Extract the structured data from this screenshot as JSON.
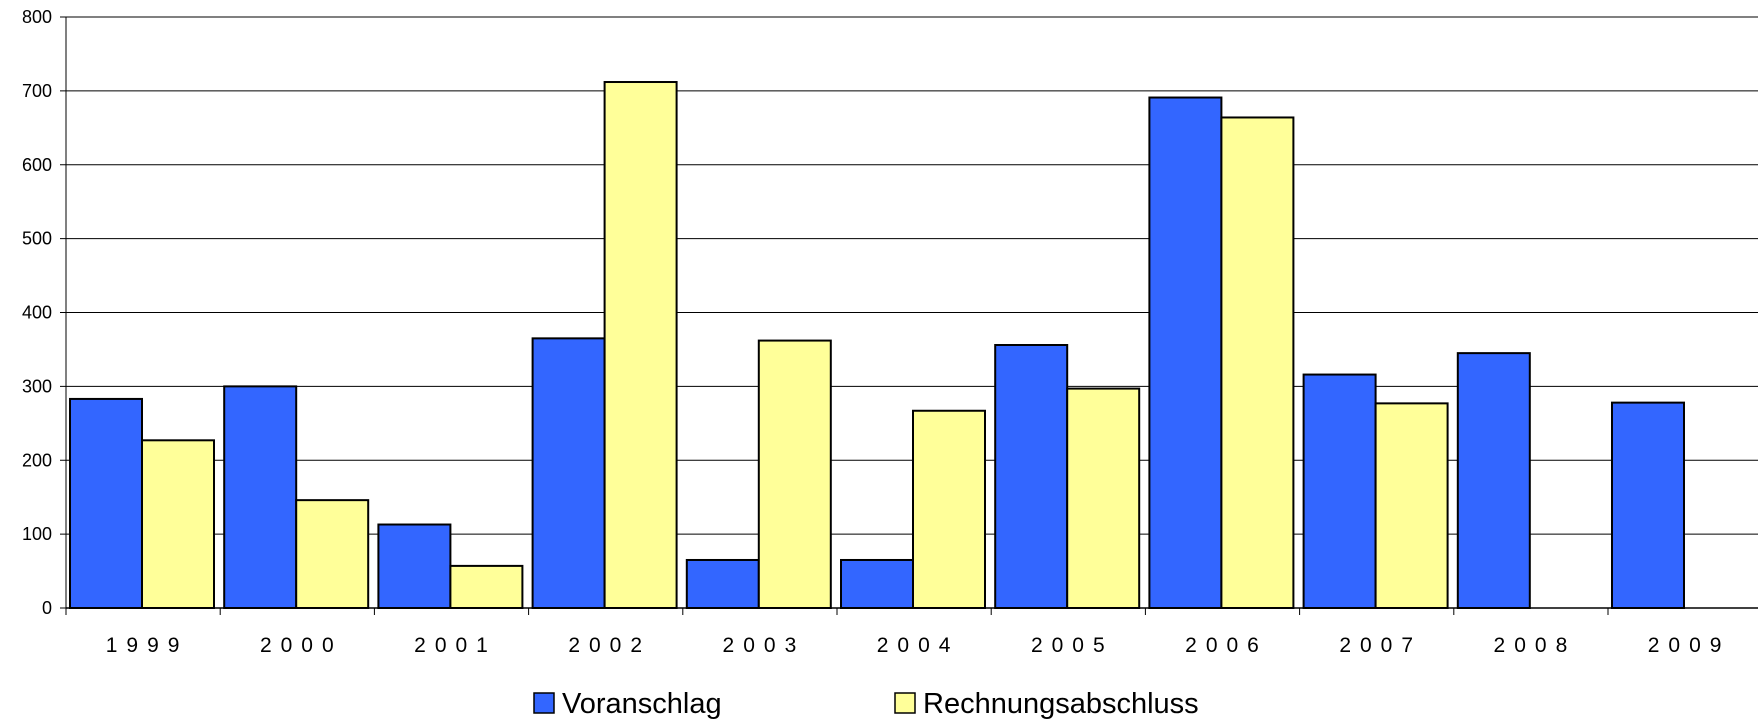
{
  "chart_data": {
    "type": "bar",
    "title": "",
    "xlabel": "",
    "ylabel": "",
    "ylim": [
      0,
      800
    ],
    "yticks": [
      0,
      100,
      200,
      300,
      400,
      500,
      600,
      700,
      800
    ],
    "grid": true,
    "legend_position": "bottom",
    "categories": [
      "1999",
      "2000",
      "2001",
      "2002",
      "2003",
      "2004",
      "2005",
      "2006",
      "2007",
      "2008",
      "2009"
    ],
    "series": [
      {
        "name": "Voranschlag",
        "color": "#3366ff",
        "values": [
          283,
          300,
          113,
          365,
          65,
          65,
          356,
          691,
          316,
          345,
          278
        ]
      },
      {
        "name": "Rechnungsabschluss",
        "color": "#ffff99",
        "values": [
          227,
          146,
          57,
          712,
          362,
          267,
          297,
          664,
          277,
          null,
          null
        ]
      }
    ]
  }
}
